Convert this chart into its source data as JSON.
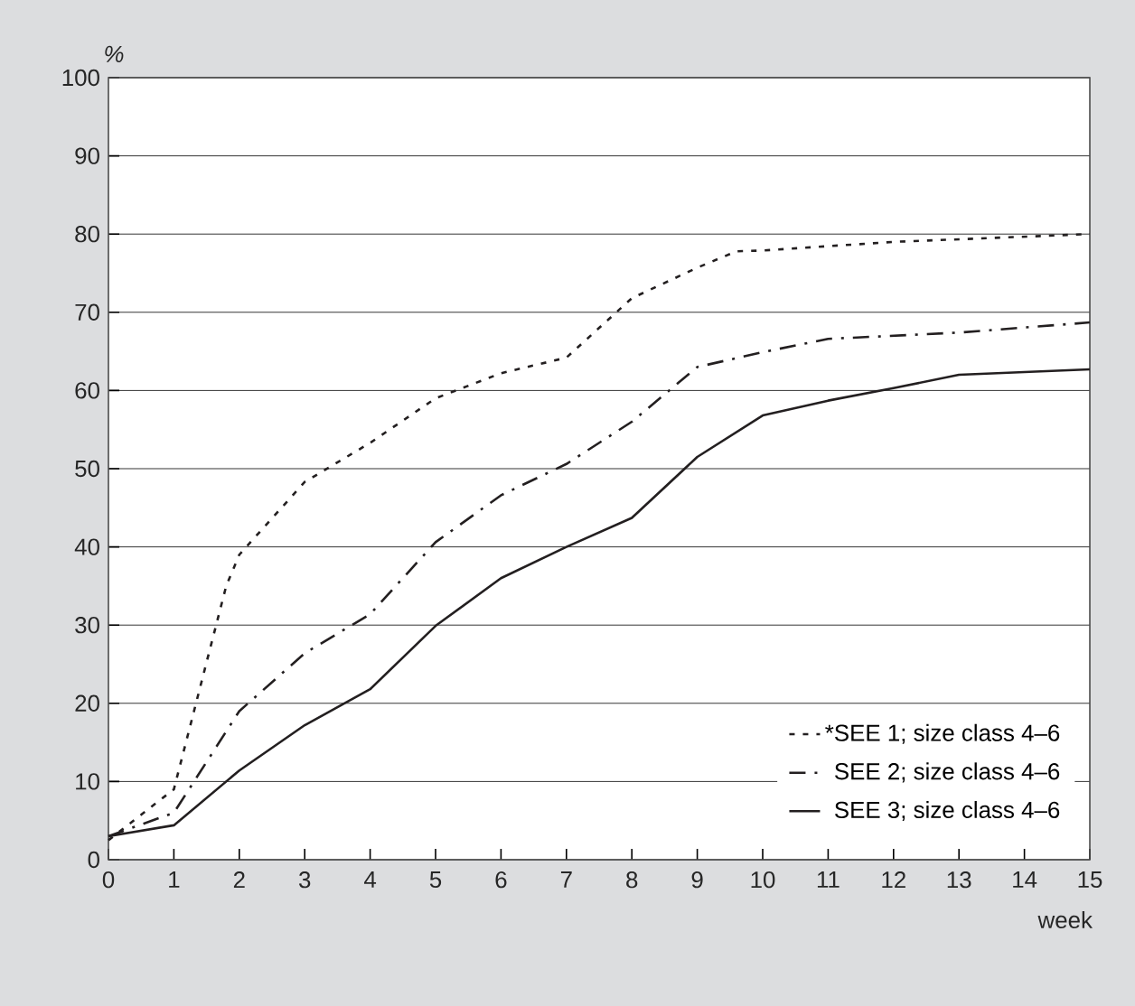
{
  "chart_data": {
    "type": "line",
    "xlabel": "week",
    "ylabel": "%",
    "xlim": [
      0,
      15
    ],
    "ylim": [
      0,
      100
    ],
    "xticks": [
      0,
      1,
      2,
      3,
      4,
      5,
      6,
      7,
      8,
      9,
      10,
      11,
      12,
      13,
      14,
      15
    ],
    "yticks": [
      0,
      10,
      20,
      30,
      40,
      50,
      60,
      70,
      80,
      90,
      100
    ],
    "grid": "y",
    "legend": "bottom right",
    "series": [
      {
        "name": "*SEE 1; size class 4–6",
        "color": "#231f20",
        "line_style": "dotted",
        "x": [
          0,
          1,
          1.8,
          2,
          3,
          4,
          5,
          6,
          7,
          8,
          9,
          9.6,
          10,
          12,
          15
        ],
        "values": [
          2.5,
          9,
          35,
          39,
          48.3,
          53.3,
          59,
          62.2,
          64.2,
          71.8,
          75.7,
          77.8,
          77.9,
          79,
          80
        ]
      },
      {
        "name": "SEE 2; size class 4–6",
        "color": "#231f20",
        "line_style": "dashdot",
        "x": [
          0,
          1,
          2,
          3,
          4,
          5,
          6,
          7,
          8,
          9,
          10,
          11,
          13,
          15
        ],
        "values": [
          3,
          6,
          19,
          26.4,
          31.4,
          40.6,
          46.6,
          50.6,
          56,
          63,
          64.9,
          66.6,
          67.4,
          68.7
        ]
      },
      {
        "name": "SEE 3; size class 4–6",
        "color": "#231f20",
        "line_style": "solid",
        "x": [
          0,
          1,
          2,
          3,
          4,
          5,
          6,
          7,
          8,
          9,
          10,
          11,
          12,
          13,
          15
        ],
        "values": [
          3,
          4.4,
          11.4,
          17.2,
          21.8,
          29.9,
          36,
          40,
          43.7,
          51.5,
          56.8,
          58.7,
          60.3,
          62,
          62.7
        ]
      }
    ]
  }
}
